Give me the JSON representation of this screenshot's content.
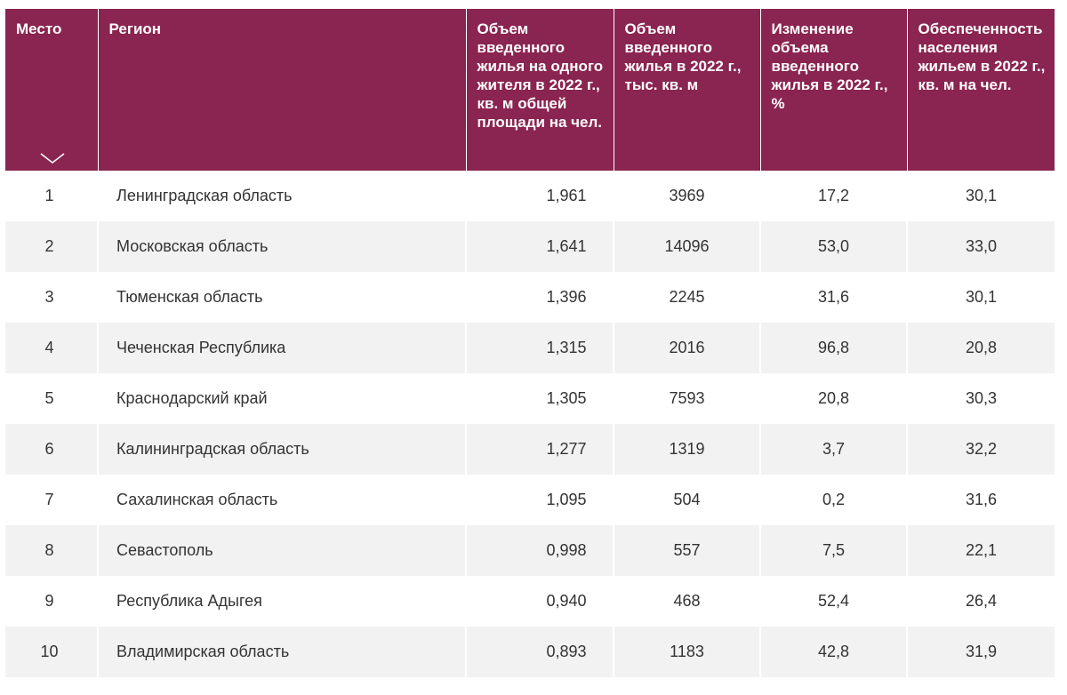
{
  "table": {
    "headers": {
      "place": "Место",
      "region": "Регион",
      "per_capita": "Объем введенного жилья на одного жителя в 2022 г., кв. м общей площади на чел.",
      "volume": "Объем введенного жилья в 2022 г., тыс. кв. м",
      "change": "Изменение объема введенного жилья в 2022 г., %",
      "provision": "Обеспеченность населения жильем в 2022 г., кв. м на чел."
    },
    "rows": [
      {
        "place": "1",
        "region": "Ленинградская область",
        "per_capita": "1,961",
        "volume": "3969",
        "change": "17,2",
        "provision": "30,1"
      },
      {
        "place": "2",
        "region": "Московская область",
        "per_capita": "1,641",
        "volume": "14096",
        "change": "53,0",
        "provision": "33,0"
      },
      {
        "place": "3",
        "region": "Тюменская область",
        "per_capita": "1,396",
        "volume": "2245",
        "change": "31,6",
        "provision": "30,1"
      },
      {
        "place": "4",
        "region": "Чеченская Республика",
        "per_capita": "1,315",
        "volume": "2016",
        "change": "96,8",
        "provision": "20,8"
      },
      {
        "place": "5",
        "region": "Краснодарский край",
        "per_capita": "1,305",
        "volume": "7593",
        "change": "20,8",
        "provision": "30,3"
      },
      {
        "place": "6",
        "region": "Калининградская область",
        "per_capita": "1,277",
        "volume": "1319",
        "change": "3,7",
        "provision": "32,2"
      },
      {
        "place": "7",
        "region": "Сахалинская область",
        "per_capita": "1,095",
        "volume": "504",
        "change": "0,2",
        "provision": "31,6"
      },
      {
        "place": "8",
        "region": "Севастополь",
        "per_capita": "0,998",
        "volume": "557",
        "change": "7,5",
        "provision": "22,1"
      },
      {
        "place": "9",
        "region": "Республика Адыгея",
        "per_capita": "0,940",
        "volume": "468",
        "change": "52,4",
        "provision": "26,4"
      },
      {
        "place": "10",
        "region": "Владимирская область",
        "per_capita": "0,893",
        "volume": "1183",
        "change": "42,8",
        "provision": "31,9"
      }
    ]
  },
  "colors": {
    "header_bg": "#8a2450",
    "header_text": "#ffffff",
    "row_alt": "#f2f2f2"
  },
  "icons": {
    "sort": "chevron-down-icon"
  }
}
